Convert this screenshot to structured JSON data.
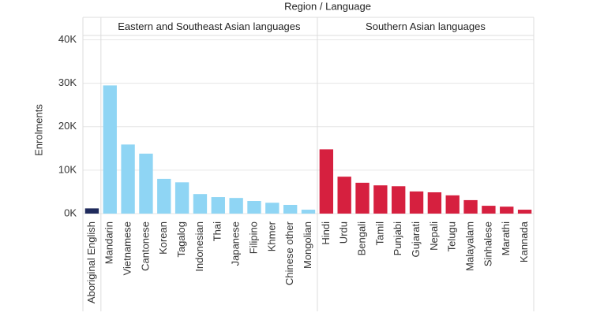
{
  "chart_data": {
    "type": "bar",
    "title": "Region / Language",
    "y_label": "Enrolments",
    "ylim": [
      0,
      41000
    ],
    "yticks": [
      {
        "value": 0,
        "label": "0K"
      },
      {
        "value": 10000,
        "label": "10K"
      },
      {
        "value": 20000,
        "label": "20K"
      },
      {
        "value": 30000,
        "label": "30K"
      },
      {
        "value": 40000,
        "label": "40K"
      }
    ],
    "grid": true,
    "panels": [
      {
        "color": "#1f2a5c",
        "categories": [
          "Aboriginal English"
        ],
        "values": [
          1200
        ]
      },
      {
        "header": "Eastern and Southeast Asian languages",
        "color": "#8fd5f4",
        "categories": [
          "Mandarin",
          "Vietnamese",
          "Cantonese",
          "Korean",
          "Tagalog",
          "Indonesian",
          "Thai",
          "Japanese",
          "Filipino",
          "Khmer",
          "Chinese other",
          "Mongolian"
        ],
        "values": [
          29500,
          15900,
          13800,
          8000,
          7200,
          4500,
          3800,
          3600,
          2900,
          2500,
          2000,
          900
        ]
      },
      {
        "header": "Southern Asian languages",
        "color": "#d6203f",
        "categories": [
          "Hindi",
          "Urdu",
          "Bengali",
          "Tamil",
          "Punjabi",
          "Gujarati",
          "Nepali",
          "Telugu",
          "Malayalam",
          "Sinhalese",
          "Marathi",
          "Kannada"
        ],
        "values": [
          14800,
          8500,
          7100,
          6500,
          6300,
          5100,
          4900,
          4200,
          3100,
          1800,
          1600,
          900
        ]
      }
    ]
  }
}
